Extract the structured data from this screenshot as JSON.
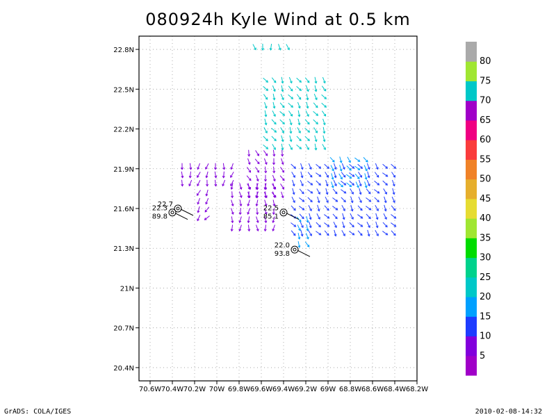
{
  "title": "080924h Kyle Wind at 0.5 km",
  "footer": {
    "left": "GrADS: COLA/IGES",
    "right": "2010-02-08-14:32"
  },
  "chart_data": {
    "type": "vector-field",
    "title": "080924h Kyle Wind at 0.5 km",
    "xlim": [
      -70.7,
      -68.2
    ],
    "ylim": [
      20.3,
      22.9
    ],
    "x_ticks": [
      {
        "v": -70.6,
        "label": "70.6W"
      },
      {
        "v": -70.4,
        "label": "70.4W"
      },
      {
        "v": -70.2,
        "label": "70.2W"
      },
      {
        "v": -70.0,
        "label": "70W"
      },
      {
        "v": -69.8,
        "label": "69.8W"
      },
      {
        "v": -69.6,
        "label": "69.6W"
      },
      {
        "v": -69.4,
        "label": "69.4W"
      },
      {
        "v": -69.2,
        "label": "69.2W"
      },
      {
        "v": -69.0,
        "label": "69W"
      },
      {
        "v": -68.8,
        "label": "68.8W"
      },
      {
        "v": -68.6,
        "label": "68.6W"
      },
      {
        "v": -68.4,
        "label": "68.4W"
      },
      {
        "v": -68.2,
        "label": "68.2W"
      }
    ],
    "y_ticks": [
      {
        "v": 20.4,
        "label": "20.4N"
      },
      {
        "v": 20.7,
        "label": "20.7N"
      },
      {
        "v": 21.0,
        "label": "21N"
      },
      {
        "v": 21.3,
        "label": "21.3N"
      },
      {
        "v": 21.6,
        "label": "21.6N"
      },
      {
        "v": 21.9,
        "label": "21.9N"
      },
      {
        "v": 22.2,
        "label": "22.2N"
      },
      {
        "v": 22.5,
        "label": "22.5N"
      },
      {
        "v": 22.8,
        "label": "22.8N"
      }
    ],
    "grid": true,
    "colorbar": {
      "labels": [
        "5",
        "10",
        "15",
        "20",
        "25",
        "30",
        "35",
        "40",
        "45",
        "50",
        "55",
        "60",
        "65",
        "70",
        "75",
        "80"
      ],
      "colors": [
        "#a000c8",
        "#8200dc",
        "#1e3cff",
        "#00a0ff",
        "#00c8c8",
        "#00d28c",
        "#00dc00",
        "#a0e632",
        "#e6dc32",
        "#e6af2d",
        "#f08228",
        "#fa3c3c",
        "#f00082",
        "#a000c8",
        "#00c8c8",
        "#a0e632",
        "#aaaaaa"
      ]
    },
    "storm_markers": [
      {
        "lon": -70.35,
        "lat": 21.6,
        "wind": "22.7",
        "pressure": ""
      },
      {
        "lon": -70.4,
        "lat": 21.57,
        "wind": "22.3",
        "pressure": "89.8"
      },
      {
        "lon": -69.4,
        "lat": 21.57,
        "wind": "22.5",
        "pressure": "85.1"
      },
      {
        "lon": -69.3,
        "lat": 21.29,
        "wind": "22.0",
        "pressure": "93.8"
      }
    ],
    "wind_regions": [
      {
        "lon": [
          -69.6,
          -69.0
        ],
        "lat": [
          22.05,
          22.6
        ],
        "dir_deg": 300,
        "speed": 20
      },
      {
        "lon": [
          -69.75,
          -69.35
        ],
        "lat": [
          21.7,
          22.05
        ],
        "dir_deg": 290,
        "speed": 8
      },
      {
        "lon": [
          -69.35,
          -68.4
        ],
        "lat": [
          21.4,
          21.95
        ],
        "dir_deg": 305,
        "speed": 12
      },
      {
        "lon": [
          -69.0,
          -68.65
        ],
        "lat": [
          21.75,
          22.0
        ],
        "dir_deg": 305,
        "speed": 18
      },
      {
        "lon": [
          -69.9,
          -69.45
        ],
        "lat": [
          21.45,
          21.8
        ],
        "dir_deg": 270,
        "speed": 5
      },
      {
        "lon": [
          -70.35,
          -69.85
        ],
        "lat": [
          21.75,
          21.95
        ],
        "dir_deg": 260,
        "speed": 5
      },
      {
        "lon": [
          -70.2,
          -70.05
        ],
        "lat": [
          21.5,
          21.75
        ],
        "dir_deg": 235,
        "speed": 5
      },
      {
        "lon": [
          -69.3,
          -69.15
        ],
        "lat": [
          21.3,
          21.55
        ],
        "dir_deg": 300,
        "speed": 15
      },
      {
        "lon": [
          -69.7,
          -69.3
        ],
        "lat": [
          22.8,
          22.85
        ],
        "dir_deg": 280,
        "speed": 20
      }
    ]
  }
}
